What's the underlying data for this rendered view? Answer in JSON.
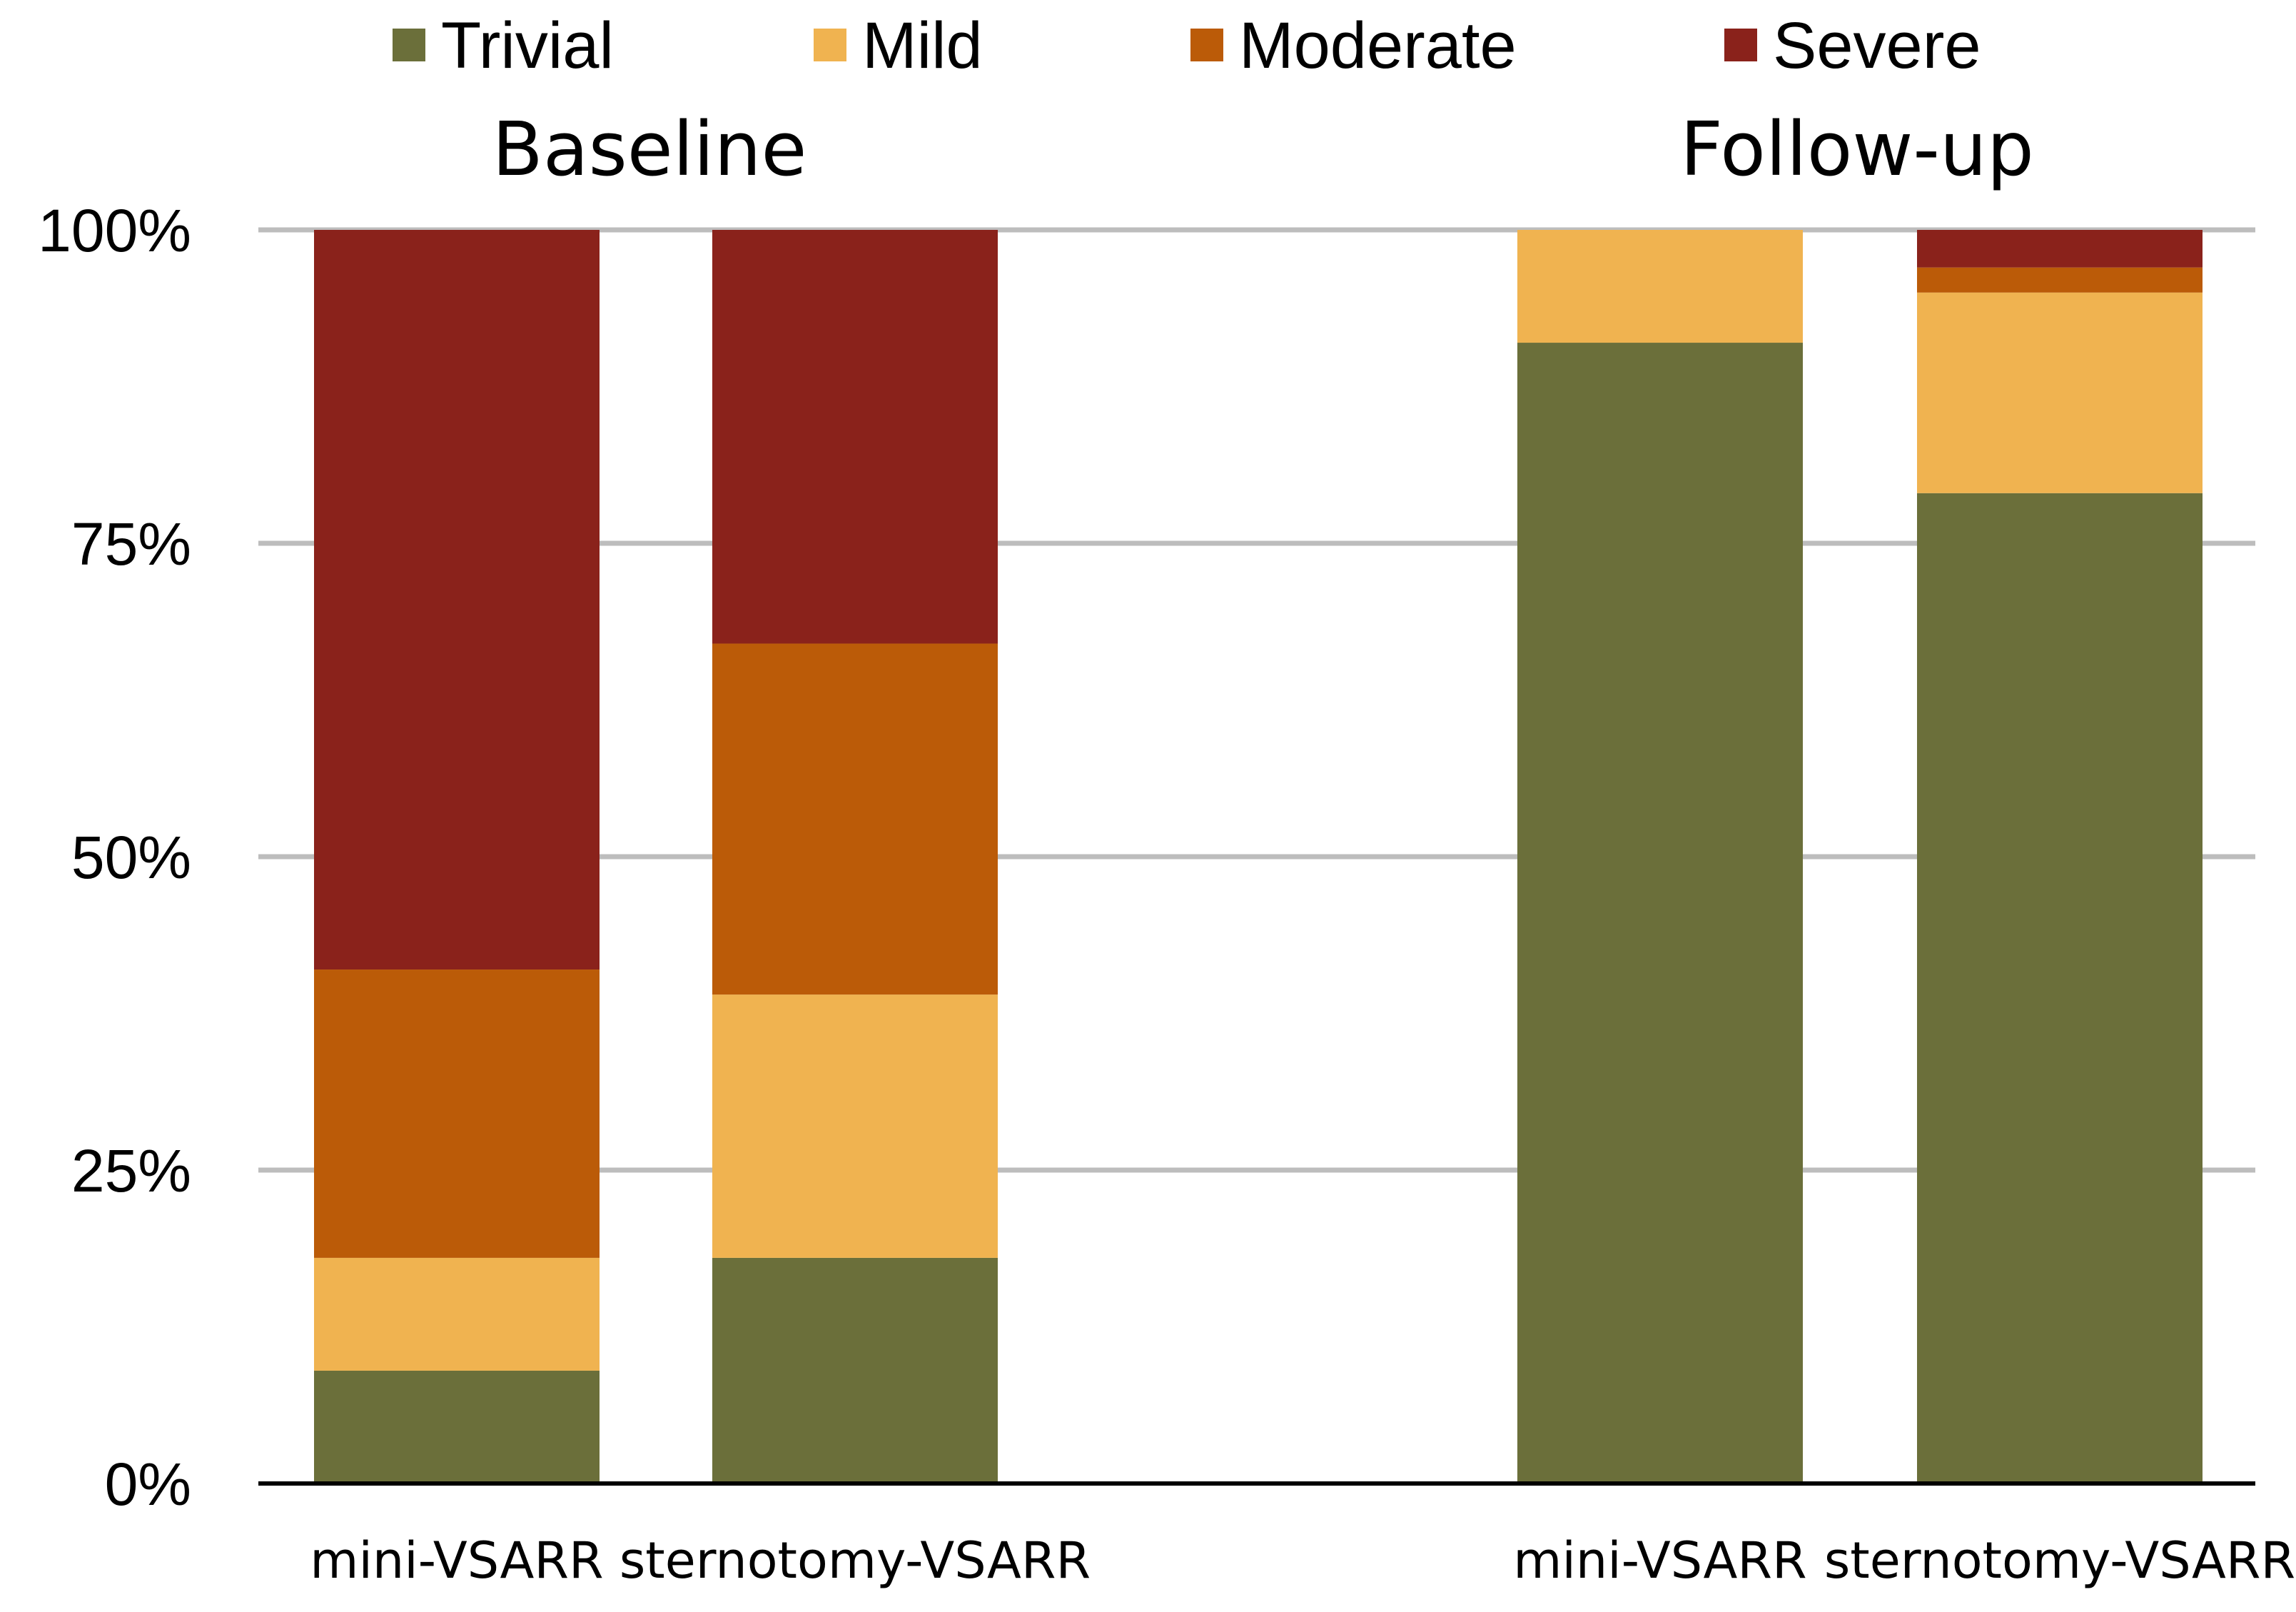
{
  "chart_data": {
    "type": "bar",
    "stacked": true,
    "normalized": true,
    "groups": [
      {
        "title": "Baseline",
        "categories": [
          "mini-VSARR",
          "sternotomy-VSARR"
        ]
      },
      {
        "title": "Follow-up",
        "categories": [
          "mini-VSARR",
          "sternotomy-VSARR"
        ]
      }
    ],
    "categories": [
      "mini-VSARR",
      "sternotomy-VSARR",
      "mini-VSARR",
      "sternotomy-VSARR"
    ],
    "series": [
      {
        "name": "Trivial",
        "color": "#6b6f3a",
        "values": [
          9,
          18,
          91,
          79
        ]
      },
      {
        "name": "Mild",
        "color": "#f0b350",
        "values": [
          9,
          21,
          9,
          16
        ]
      },
      {
        "name": "Moderate",
        "color": "#bb5b08",
        "values": [
          23,
          28,
          0,
          2
        ]
      },
      {
        "name": "Severe",
        "color": "#8a221b",
        "values": [
          59,
          33,
          0,
          3
        ]
      }
    ],
    "yticks": [
      "0%",
      "25%",
      "50%",
      "75%",
      "100%"
    ],
    "ylim": [
      0,
      100
    ],
    "legend_position": "top",
    "grid": true
  }
}
